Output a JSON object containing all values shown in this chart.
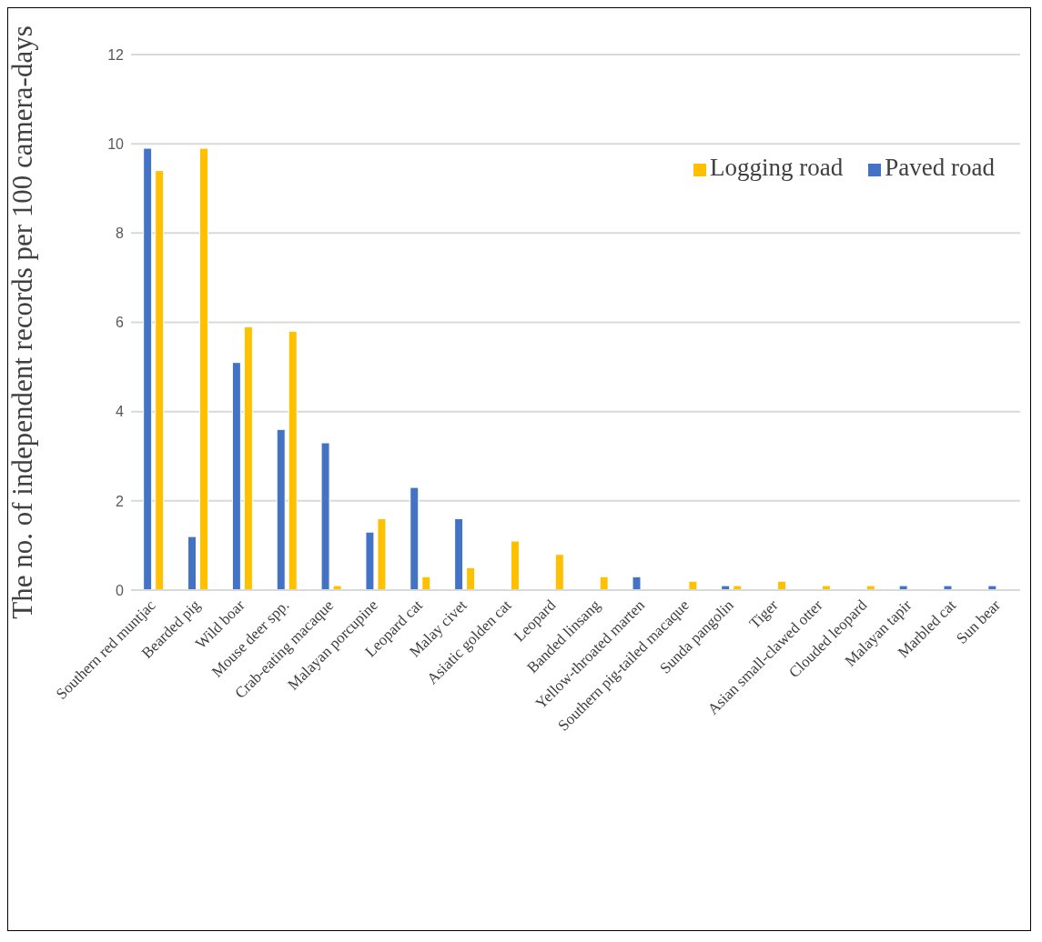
{
  "chart_data": {
    "type": "bar",
    "ylabel": "The no. of independent  records per 100 camera-days",
    "categories": [
      "Southern red muntjac",
      "Bearded pig",
      "Wild boar",
      "Mouse deer spp.",
      "Crab-eating macaque",
      "Malayan porcupine",
      "Leopard cat",
      "Malay civet",
      "Asiatic golden cat",
      "Leopard",
      "Banded linsang",
      "Yellow-throated marten",
      "Southern pig-tailed macaque",
      "Sunda pangolin",
      "Tiger",
      "Asian small-clawed otter",
      "Clouded leopard",
      "Malayan tapir",
      "Marbled cat",
      "Sun bear"
    ],
    "series": [
      {
        "name": "Paved road",
        "color": "#4472c4",
        "values": [
          9.9,
          1.2,
          5.1,
          3.6,
          3.3,
          1.3,
          2.3,
          1.6,
          0,
          0,
          0,
          0.3,
          0,
          0.1,
          0,
          0,
          0,
          0.1,
          0.1,
          0.1
        ]
      },
      {
        "name": "Logging road",
        "color": "#ffc000",
        "values": [
          9.4,
          9.9,
          5.9,
          5.8,
          0.1,
          1.6,
          0.3,
          0.5,
          1.1,
          0.8,
          0.3,
          0,
          0.2,
          0.1,
          0.2,
          0.1,
          0.1,
          0,
          0,
          0
        ]
      }
    ],
    "ylim": [
      0,
      12
    ],
    "yticks": [
      0,
      2,
      4,
      6,
      8,
      10,
      12
    ],
    "grid": "y",
    "legend": "top right"
  }
}
